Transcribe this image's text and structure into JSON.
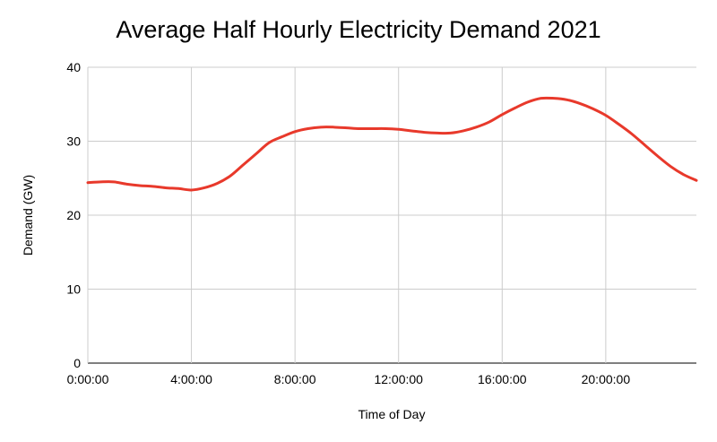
{
  "chart_data": {
    "type": "line",
    "title": "Average Half Hourly Electricity Demand 2021",
    "xlabel": "Time of Day",
    "ylabel": "Demand (GW)",
    "ylim": [
      0,
      40
    ],
    "y_ticks": [
      "0",
      "10",
      "20",
      "30",
      "40"
    ],
    "x_ticks": [
      "0:00:00",
      "4:00:00",
      "8:00:00",
      "12:00:00",
      "16:00:00",
      "20:00:00"
    ],
    "xlim_hours": [
      0,
      23.5
    ],
    "grid": true,
    "legend": "none",
    "series": [
      {
        "color": "#e8392b",
        "x_hours": [
          0,
          0.5,
          1,
          1.5,
          2,
          2.5,
          3,
          3.5,
          4,
          4.5,
          5,
          5.5,
          6,
          6.5,
          7,
          7.5,
          8,
          8.5,
          9,
          9.5,
          10,
          10.5,
          11,
          11.5,
          12,
          12.5,
          13,
          13.5,
          14,
          14.5,
          15,
          15.5,
          16,
          16.5,
          17,
          17.5,
          18,
          18.5,
          19,
          19.5,
          20,
          20.5,
          21,
          21.5,
          22,
          22.5,
          23,
          23.5
        ],
        "values": [
          24.4,
          24.5,
          24.5,
          24.2,
          24.0,
          23.9,
          23.7,
          23.6,
          23.4,
          23.7,
          24.3,
          25.3,
          26.8,
          28.3,
          29.8,
          30.6,
          31.3,
          31.7,
          31.9,
          31.9,
          31.8,
          31.7,
          31.7,
          31.7,
          31.6,
          31.4,
          31.2,
          31.1,
          31.1,
          31.4,
          31.9,
          32.6,
          33.6,
          34.5,
          35.3,
          35.8,
          35.8,
          35.6,
          35.1,
          34.4,
          33.5,
          32.3,
          31.0,
          29.5,
          28.0,
          26.6,
          25.5,
          24.7
        ]
      }
    ]
  }
}
